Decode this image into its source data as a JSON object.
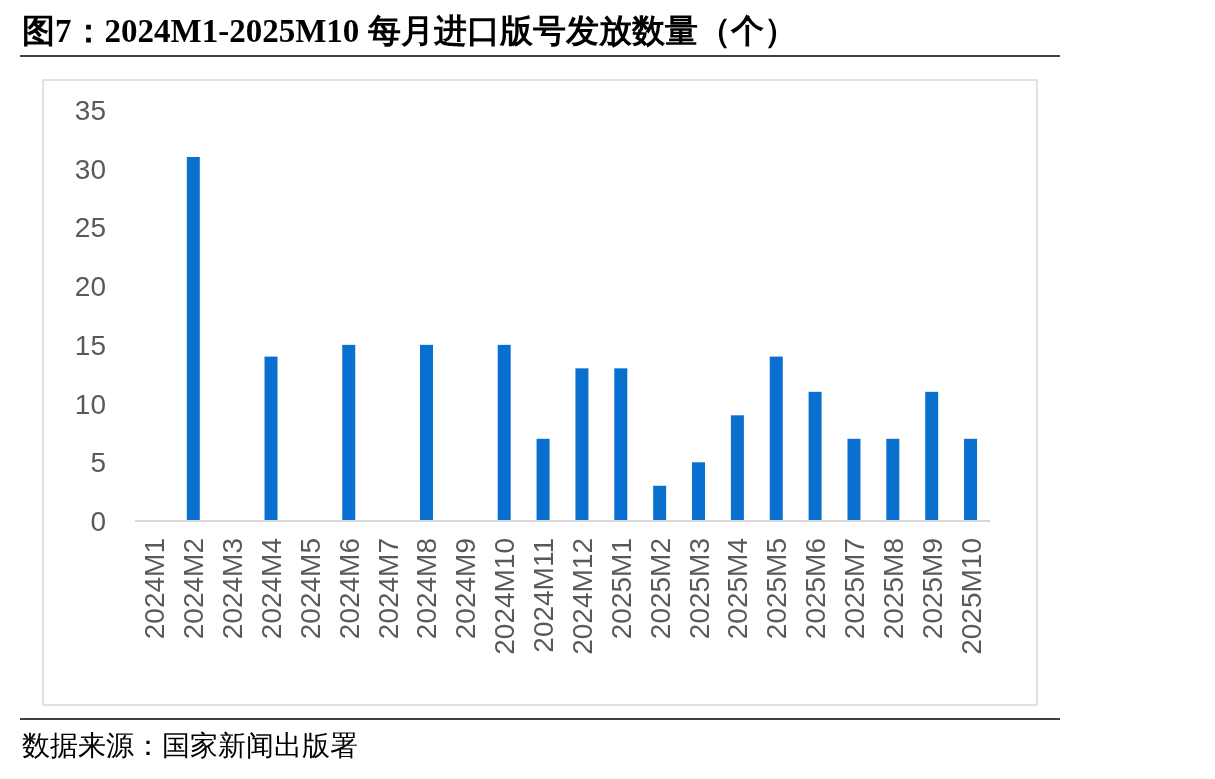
{
  "chart_data": {
    "type": "bar",
    "title": "图7：2024M1-2025M10 每月进口版号发放数量（个）",
    "categories": [
      "2024M1",
      "2024M2",
      "2024M3",
      "2024M4",
      "2024M5",
      "2024M6",
      "2024M7",
      "2024M8",
      "2024M9",
      "2024M10",
      "2024M11",
      "2024M12",
      "2025M1",
      "2025M2",
      "2025M3",
      "2025M4",
      "2025M5",
      "2025M6",
      "2025M7",
      "2025M8",
      "2025M9",
      "2025M10"
    ],
    "values": [
      0,
      31,
      0,
      14,
      0,
      15,
      0,
      15,
      0,
      15,
      7,
      13,
      13,
      3,
      5,
      9,
      14,
      11,
      7,
      7,
      11,
      7
    ],
    "color": "#0a70d0",
    "ylim": [
      0,
      35
    ],
    "yticks": [
      0,
      5,
      10,
      15,
      20,
      25,
      30,
      35
    ],
    "annotations": [
      "数据来源：国家新闻出版署"
    ]
  }
}
